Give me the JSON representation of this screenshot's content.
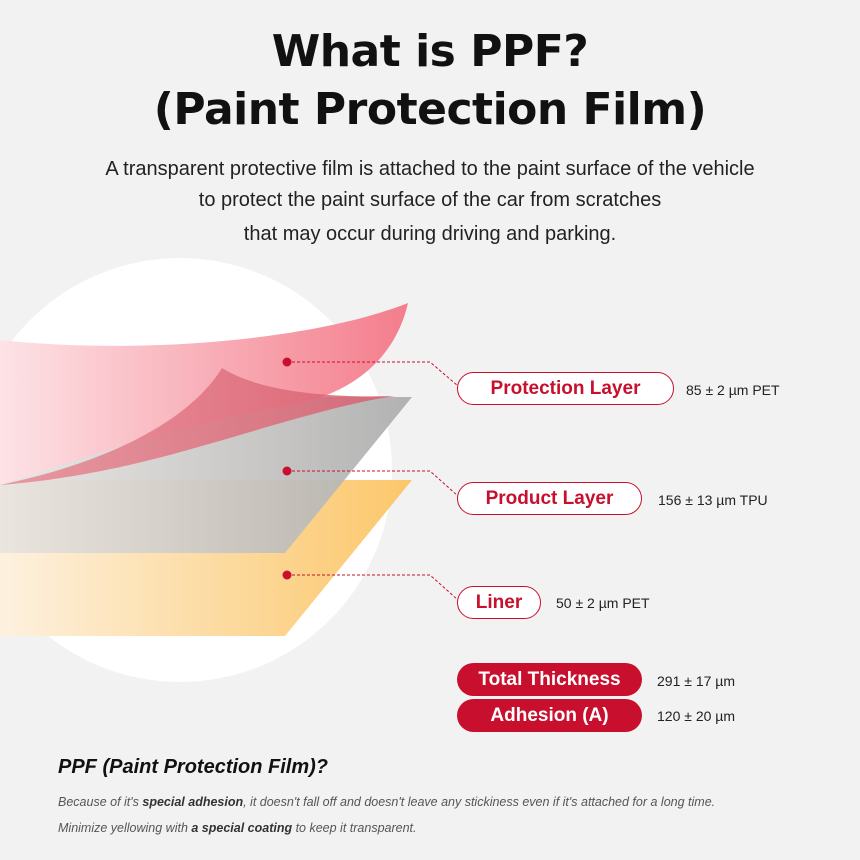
{
  "header": {
    "title_line1": "What is PPF?",
    "title_line2": "(Paint Protection Film)",
    "description": [
      "A transparent protective film is attached to the paint surface of the vehicle",
      "to protect the paint surface of the car from scratches",
      "that may occur during driving and parking."
    ]
  },
  "layers": [
    {
      "label": "Protection Layer",
      "spec": "85 ± 2 µm PET"
    },
    {
      "label": "Product Layer",
      "spec": "156 ± 13 µm TPU"
    },
    {
      "label": "Liner",
      "spec": "50 ± 2 µm PET"
    }
  ],
  "totals": [
    {
      "label": "Total Thickness",
      "spec": "291 ± 17 µm"
    },
    {
      "label": "Adhesion (A)",
      "spec": "120 ± 20 µm"
    }
  ],
  "footer": {
    "heading": "PPF (Paint Protection Film)?",
    "line1": [
      "Because of it's ",
      "special adhesion",
      ", it doesn't fall off and doesn't leave any stickiness even if it's attached for a long time."
    ],
    "line2": [
      "Minimize yellowing with ",
      "a special coating",
      " to keep it transparent."
    ]
  }
}
